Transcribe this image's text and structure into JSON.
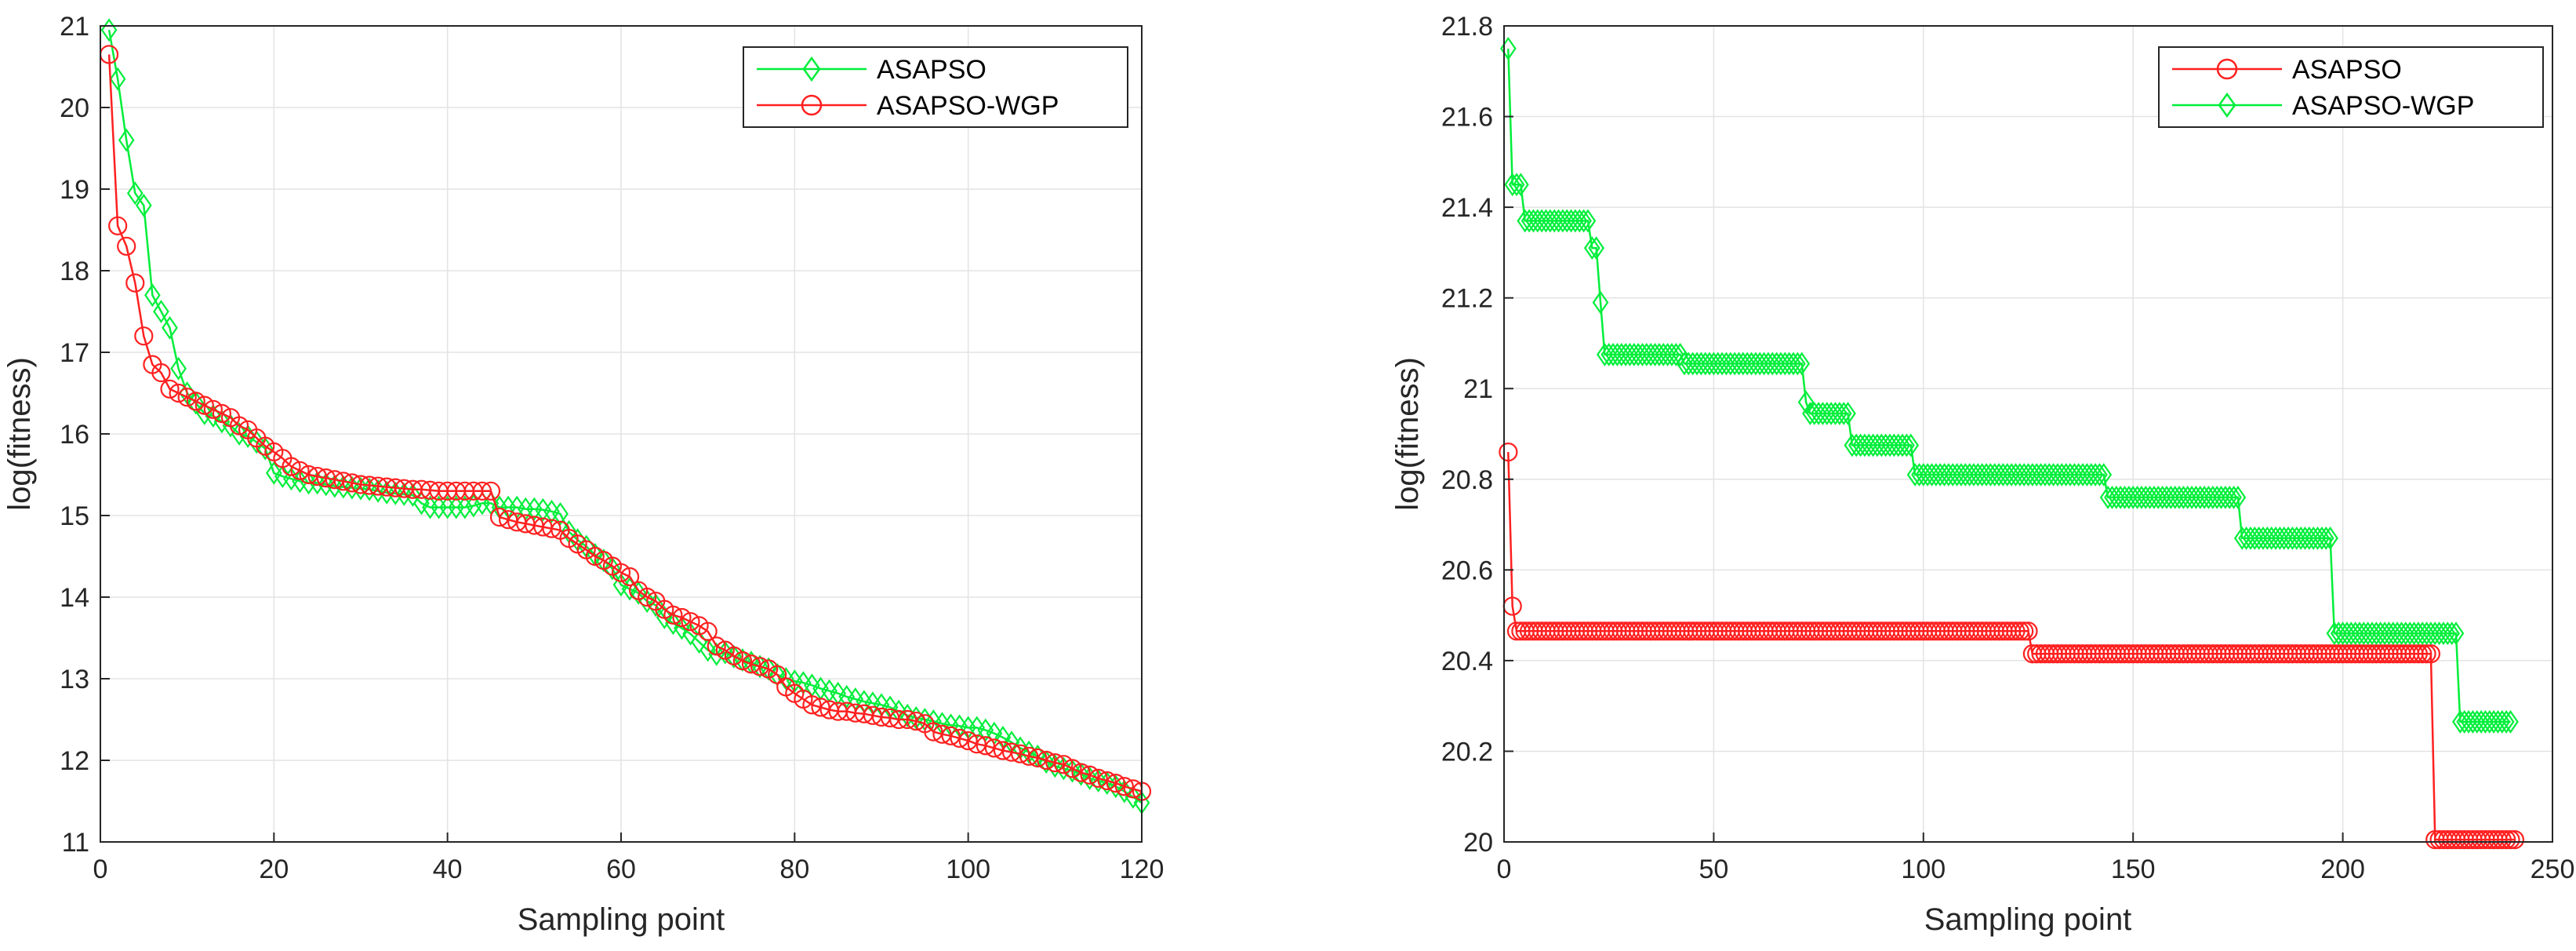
{
  "chart_data": [
    {
      "type": "line",
      "title": "",
      "xlabel": "Sampling point",
      "ylabel": "log(fitness)",
      "xlim": [
        0,
        120
      ],
      "ylim": [
        11,
        21
      ],
      "xticks": [
        0,
        20,
        40,
        60,
        80,
        100,
        120
      ],
      "yticks": [
        11,
        12,
        13,
        14,
        15,
        16,
        17,
        18,
        19,
        20,
        21
      ],
      "grid": true,
      "legend_position": "top-right",
      "series": [
        {
          "name": "ASAPSO",
          "color": "#00ee3a",
          "marker": "diamond",
          "x": [
            1,
            2,
            3,
            4,
            5,
            6,
            7,
            8,
            9,
            10,
            11,
            12,
            13,
            14,
            15,
            16,
            17,
            18,
            19,
            20,
            21,
            22,
            23,
            24,
            25,
            26,
            27,
            28,
            29,
            30,
            31,
            32,
            33,
            34,
            35,
            36,
            37,
            38,
            39,
            40,
            41,
            42,
            43,
            44,
            45,
            46,
            47,
            48,
            49,
            50,
            51,
            52,
            53,
            54,
            55,
            56,
            57,
            58,
            59,
            60,
            61,
            62,
            63,
            64,
            65,
            66,
            67,
            68,
            69,
            70,
            71,
            72,
            73,
            74,
            75,
            76,
            77,
            78,
            79,
            80,
            81,
            82,
            83,
            84,
            85,
            86,
            87,
            88,
            89,
            90,
            91,
            92,
            93,
            94,
            95,
            96,
            97,
            98,
            99,
            100,
            101,
            102,
            103,
            104,
            105,
            106,
            107,
            108,
            109,
            110,
            111,
            112,
            113,
            114,
            115,
            116,
            117,
            118,
            119,
            120
          ],
          "values": [
            20.95,
            20.35,
            19.6,
            18.95,
            18.8,
            17.7,
            17.5,
            17.3,
            16.8,
            16.5,
            16.38,
            16.25,
            16.22,
            16.15,
            16.1,
            16.0,
            15.97,
            15.9,
            15.82,
            15.52,
            15.48,
            15.45,
            15.42,
            15.4,
            15.4,
            15.38,
            15.36,
            15.35,
            15.34,
            15.33,
            15.32,
            15.3,
            15.28,
            15.27,
            15.26,
            15.25,
            15.15,
            15.1,
            15.1,
            15.1,
            15.1,
            15.1,
            15.12,
            15.15,
            15.15,
            15.1,
            15.1,
            15.1,
            15.08,
            15.08,
            15.07,
            15.05,
            15.02,
            14.8,
            14.7,
            14.62,
            14.52,
            14.45,
            14.35,
            14.15,
            14.1,
            14.05,
            13.95,
            13.9,
            13.75,
            13.68,
            13.62,
            13.55,
            13.45,
            13.35,
            13.3,
            13.32,
            13.27,
            13.23,
            13.2,
            13.15,
            13.12,
            13.05,
            13.0,
            12.97,
            12.95,
            12.92,
            12.88,
            12.85,
            12.82,
            12.78,
            12.75,
            12.72,
            12.7,
            12.68,
            12.65,
            12.6,
            12.55,
            12.52,
            12.5,
            12.48,
            12.45,
            12.43,
            12.42,
            12.4,
            12.4,
            12.37,
            12.33,
            12.28,
            12.22,
            12.15,
            12.1,
            12.05,
            11.98,
            11.93,
            11.9,
            11.87,
            11.83,
            11.78,
            11.75,
            11.72,
            11.68,
            11.62,
            11.55,
            11.48
          ]
        },
        {
          "name": "ASAPSO-WGP",
          "color": "#ff2020",
          "marker": "circle",
          "x": [
            1,
            2,
            3,
            4,
            5,
            6,
            7,
            8,
            9,
            10,
            11,
            12,
            13,
            14,
            15,
            16,
            17,
            18,
            19,
            20,
            21,
            22,
            23,
            24,
            25,
            26,
            27,
            28,
            29,
            30,
            31,
            32,
            33,
            34,
            35,
            36,
            37,
            38,
            39,
            40,
            41,
            42,
            43,
            44,
            45,
            46,
            47,
            48,
            49,
            50,
            51,
            52,
            53,
            54,
            55,
            56,
            57,
            58,
            59,
            60,
            61,
            62,
            63,
            64,
            65,
            66,
            67,
            68,
            69,
            70,
            71,
            72,
            73,
            74,
            75,
            76,
            77,
            78,
            79,
            80,
            81,
            82,
            83,
            84,
            85,
            86,
            87,
            88,
            89,
            90,
            91,
            92,
            93,
            94,
            95,
            96,
            97,
            98,
            99,
            100,
            101,
            102,
            103,
            104,
            105,
            106,
            107,
            108,
            109,
            110,
            111,
            112,
            113,
            114,
            115,
            116,
            117,
            118,
            119,
            120
          ],
          "values": [
            20.65,
            18.55,
            18.3,
            17.85,
            17.2,
            16.85,
            16.75,
            16.55,
            16.5,
            16.45,
            16.4,
            16.35,
            16.3,
            16.25,
            16.2,
            16.1,
            16.05,
            15.95,
            15.85,
            15.78,
            15.7,
            15.6,
            15.55,
            15.5,
            15.48,
            15.46,
            15.44,
            15.42,
            15.4,
            15.38,
            15.37,
            15.36,
            15.35,
            15.34,
            15.33,
            15.32,
            15.32,
            15.31,
            15.3,
            15.3,
            15.3,
            15.3,
            15.3,
            15.3,
            15.3,
            14.98,
            14.95,
            14.92,
            14.9,
            14.88,
            14.86,
            14.84,
            14.82,
            14.72,
            14.65,
            14.58,
            14.5,
            14.45,
            14.38,
            14.3,
            14.25,
            14.08,
            14.0,
            13.95,
            13.85,
            13.78,
            13.75,
            13.7,
            13.65,
            13.58,
            13.4,
            13.35,
            13.28,
            13.22,
            13.18,
            13.15,
            13.12,
            13.05,
            12.9,
            12.82,
            12.75,
            12.68,
            12.65,
            12.62,
            12.6,
            12.6,
            12.58,
            12.57,
            12.55,
            12.53,
            12.52,
            12.5,
            12.5,
            12.48,
            12.45,
            12.35,
            12.32,
            12.3,
            12.27,
            12.24,
            12.2,
            12.18,
            12.15,
            12.12,
            12.1,
            12.08,
            12.05,
            12.03,
            12.0,
            11.97,
            11.95,
            11.9,
            11.85,
            11.82,
            11.78,
            11.75,
            11.72,
            11.68,
            11.65,
            11.62
          ]
        }
      ]
    },
    {
      "type": "line",
      "title": "",
      "xlabel": "Sampling point",
      "ylabel": "log(fitness)",
      "xlim": [
        0,
        250
      ],
      "ylim": [
        20,
        21.8
      ],
      "xticks": [
        0,
        50,
        100,
        150,
        200,
        250
      ],
      "yticks": [
        20,
        20.2,
        20.4,
        20.6,
        20.8,
        21,
        21.2,
        21.4,
        21.6,
        21.8
      ],
      "grid": true,
      "legend_position": "top-right",
      "series": [
        {
          "name": "ASAPSO",
          "color": "#ff2020",
          "marker": "circle",
          "steps": [
            [
              1,
              20.86
            ],
            [
              2,
              20.52
            ],
            [
              3,
              20.465
            ],
            [
              126,
              20.415
            ],
            [
              222,
              20.005
            ],
            [
              241,
              20.005
            ]
          ]
        },
        {
          "name": "ASAPSO-WGP",
          "color": "#00ee3a",
          "marker": "diamond",
          "steps": [
            [
              1,
              21.75
            ],
            [
              2,
              21.45
            ],
            [
              5,
              21.37
            ],
            [
              21,
              21.31
            ],
            [
              23,
              21.19
            ],
            [
              24,
              21.075
            ],
            [
              43,
              21.055
            ],
            [
              72,
              20.97
            ],
            [
              73,
              20.945
            ],
            [
              83,
              20.875
            ],
            [
              98,
              20.81
            ],
            [
              144,
              20.76
            ],
            [
              176,
              20.67
            ],
            [
              198,
              20.46
            ],
            [
              228,
              20.265
            ],
            [
              240,
              20.265
            ]
          ]
        }
      ]
    }
  ]
}
